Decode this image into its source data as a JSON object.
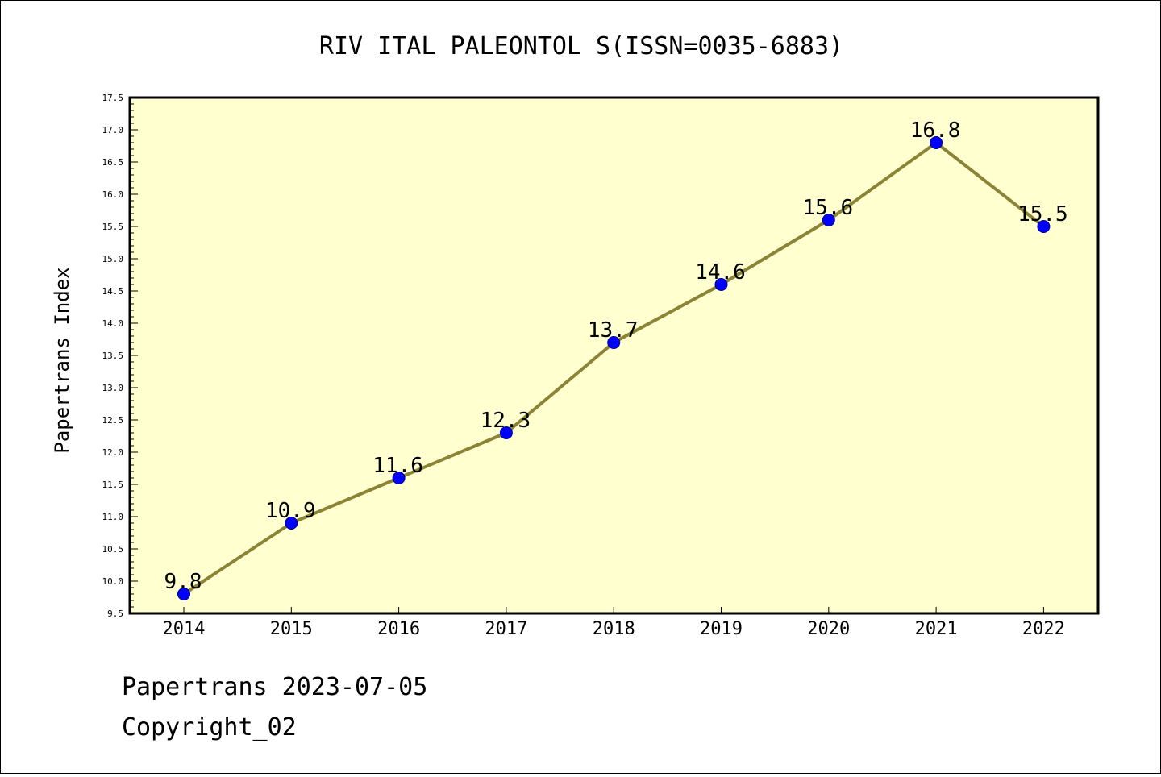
{
  "chart_data": {
    "type": "line",
    "title": "RIV ITAL PALEONTOL S(ISSN=0035-6883)",
    "xlabel": "",
    "ylabel": "Papertrans Index",
    "categories": [
      "2014",
      "2015",
      "2016",
      "2017",
      "2018",
      "2019",
      "2020",
      "2021",
      "2022"
    ],
    "series": [
      {
        "values": [
          9.8,
          10.9,
          11.6,
          12.3,
          13.7,
          14.6,
          15.6,
          16.8,
          15.5
        ]
      }
    ],
    "data_labels": [
      "9.8",
      "10.9",
      "11.6",
      "12.3",
      "13.7",
      "14.6",
      "15.6",
      "16.8",
      "15.5"
    ],
    "ylim": [
      9.5,
      17.5
    ],
    "yticks": [
      "9.5",
      "10.0",
      "10.5",
      "11.0",
      "11.5",
      "12.0",
      "12.5",
      "13.0",
      "13.5",
      "14.0",
      "14.5",
      "15.0",
      "15.5",
      "16.0",
      "16.5",
      "17.0",
      "17.5"
    ],
    "grid": false,
    "legend": "none",
    "colors": {
      "plot_background": "#ffffd0",
      "line": "#8b8335",
      "marker": "#0000ff"
    }
  },
  "footer": {
    "line1": "Papertrans 2023-07-05",
    "line2": "Copyright_02"
  }
}
